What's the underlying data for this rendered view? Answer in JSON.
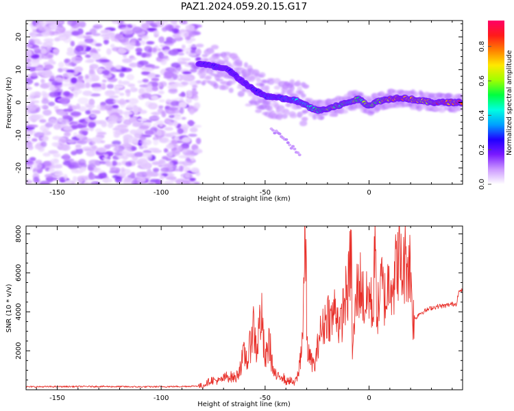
{
  "title": "PAZ1.2024.059.20.15.G17",
  "chart_data": [
    {
      "type": "heatmap",
      "xlabel": "Height of straight line (km)",
      "ylabel": "Frequency (Hz)",
      "xlim": [
        -165,
        45
      ],
      "ylim": [
        -25,
        25
      ],
      "xticks": [
        -150,
        -100,
        -50,
        0
      ],
      "yticks": [
        -20,
        -10,
        0,
        10,
        20
      ],
      "colorbar": {
        "label": "Normalized spectral amplitude",
        "range": [
          0,
          0.95
        ],
        "ticks": [
          0.0,
          0.2,
          0.4,
          0.6,
          0.8
        ],
        "colormap": [
          "#ffffff",
          "#cc99ff",
          "#7a1aff",
          "#2000ff",
          "#00a0ff",
          "#00ffe0",
          "#00ff40",
          "#a0ff00",
          "#ffe800",
          "#ff8000",
          "#ff1a1a",
          "#ff0066"
        ]
      },
      "signal_track": {
        "x": [
          -82,
          -75,
          -68,
          -62,
          -56,
          -50,
          -45,
          -40,
          -35,
          -30,
          -25,
          -20,
          -15,
          -10,
          -5,
          0,
          5,
          10,
          15,
          20,
          25,
          30,
          35,
          40,
          45
        ],
        "y": [
          12,
          11,
          10,
          7,
          4,
          2,
          1.5,
          1,
          0.5,
          -1,
          -2.5,
          -2,
          -1,
          0,
          1,
          -1,
          0.5,
          1,
          1.5,
          1,
          0.5,
          0,
          0,
          0,
          0
        ],
        "peak_amplitude": [
          0.25,
          0.3,
          0.28,
          0.2,
          0.25,
          0.3,
          0.32,
          0.35,
          0.4,
          0.45,
          0.6,
          0.65,
          0.6,
          0.55,
          0.6,
          0.6,
          0.65,
          0.8,
          0.85,
          0.85,
          0.7,
          0.75,
          0.85,
          0.9,
          0.9
        ]
      },
      "grid": false
    },
    {
      "type": "line",
      "xlabel": "Height of straight line (km)",
      "ylabel": "SNR (10 * v/v)",
      "xlim": [
        -165,
        45
      ],
      "ylim": [
        0,
        8400
      ],
      "xticks": [
        -150,
        -100,
        -50,
        0
      ],
      "yticks": [
        2000,
        4000,
        6000,
        8000
      ],
      "color": "#e8302a",
      "series": [
        {
          "x": [
            -165,
            -150,
            -130,
            -110,
            -90,
            -80,
            -76,
            -72,
            -68,
            -64,
            -60,
            -58,
            -56,
            -54,
            -52,
            -50,
            -48,
            -46,
            -44,
            -42,
            -40,
            -38,
            -36,
            -34,
            -32,
            -30.5,
            -30,
            -29.5,
            -28,
            -26,
            -24,
            -22,
            -20,
            -18,
            -16,
            -14,
            -12,
            -10,
            -8.5,
            -8,
            -6,
            -4,
            -2,
            0,
            2,
            2.5,
            4,
            6,
            8,
            10,
            12,
            14,
            16,
            18,
            20,
            21,
            22,
            24,
            26,
            28,
            30,
            32,
            34,
            36,
            38,
            40,
            42,
            43,
            45
          ],
          "y": [
            150,
            160,
            170,
            150,
            170,
            200,
            500,
            450,
            700,
            600,
            1800,
            1500,
            3500,
            2000,
            4000,
            1400,
            2500,
            900,
            600,
            800,
            400,
            500,
            300,
            800,
            2800,
            8300,
            3000,
            2000,
            1500,
            1200,
            2800,
            3200,
            4000,
            3500,
            4400,
            3000,
            4500,
            5200,
            7200,
            1800,
            5000,
            5500,
            4200,
            5000,
            3800,
            7600,
            3800,
            5500,
            4500,
            6000,
            5500,
            6900,
            6000,
            6800,
            6200,
            3800,
            3600,
            3900,
            4000,
            4100,
            4200,
            4250,
            4300,
            4300,
            4350,
            4400,
            4400,
            5000,
            5100
          ]
        }
      ],
      "grid": false
    }
  ]
}
